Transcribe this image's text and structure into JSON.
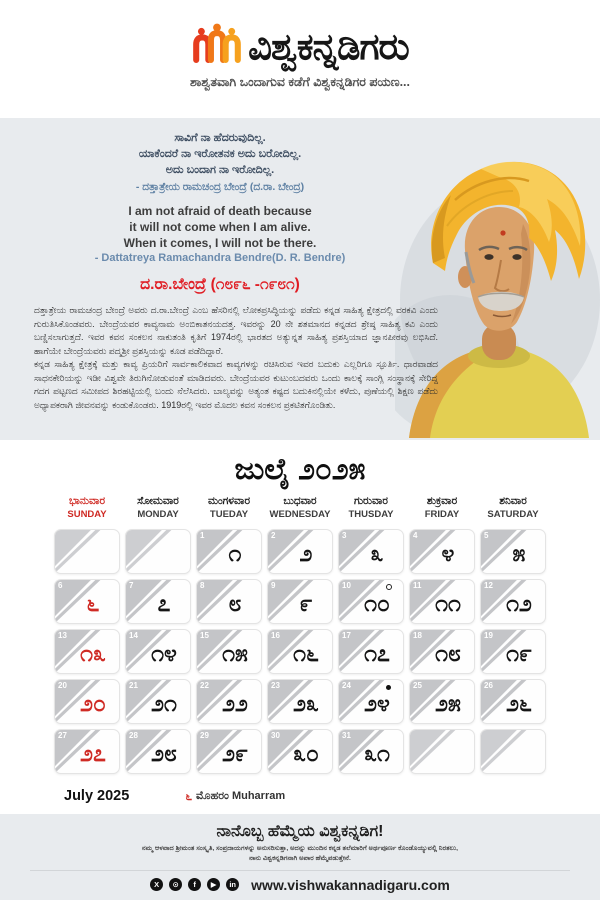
{
  "header": {
    "title": "ವಿಶ್ವಕನ್ನಡಿಗರು",
    "tagline": "ಶಾಶ್ವತವಾಗಿ ಒಂದಾಗುವ ಕಡೆಗೆ ವಿಶ್ವಕನ್ನಡಿಗರ ಪಯಣ...",
    "logo_colors": [
      "#e63c1e",
      "#f07818",
      "#f6a11e"
    ]
  },
  "bio": {
    "kannada_quote_lines": [
      "ಸಾವಿಗೆ ನಾ ಹೆದರುವುದಿಲ್ಲ.",
      "ಯಾಕೆಂದರೆ ನಾ ಇರೋತನಕ ಅದು ಬರೋದಿಲ್ಲ.",
      "ಅದು ಬಂದಾಗ ನಾ ಇರೋದಿಲ್ಲ."
    ],
    "kannada_attribution": "- ದತ್ತಾತ್ರೇಯ ರಾಮಚಂದ್ರ ಬೇಂದ್ರೆ (ದ.ರಾ. ಬೇಂದ್ರ)",
    "english_quote_lines": [
      "I am not afraid of death because",
      "it will not come when I am alive.",
      "When it comes, I will not be there."
    ],
    "english_attribution": "- Dattatreya Ramachandra Bendre(D. R. Bendre)",
    "name_title": "ದ.ರಾ.ಬೇಂದ್ರೆ (೧೮೯೬ -೧೯೮೧)",
    "paragraph1": "ದತ್ತಾತ್ರೇಯ ರಾಮಚಂದ್ರ ಬೇಂದ್ರೆ ಅವರು ದ.ರಾ.ಬೇಂದ್ರೆ ಎಂಬ ಹೆಸರಿನಲ್ಲಿ ಲೋಕಪ್ರಸಿದ್ಧಿಯನ್ನು ಪಡೆದು ಕನ್ನಡ ಸಾಹಿತ್ಯ ಕ್ಷೇತ್ರದಲ್ಲಿ ವರಕವಿ ಎಂದು ಗುರುತಿಸಿಕೊಂಡವರು. ಬೇಂದ್ರೆಯವರ ಕಾವ್ಯನಾಮ ಅಂಬಿಕಾತನಯದತ್ತ. ಇವರನ್ನು 20 ನೇ ಶತಮಾನದ ಕನ್ನಡದ ಶ್ರೇಷ್ಠ ಸಾಹಿತ್ಯ ಕವಿ ಎಂದು ಬಣ್ಣಿಸಲಾಗುತ್ತದೆ. ಇವರ ಕವನ ಸಂಕಲನ ನಾಕುತಂತಿ ಕೃತಿಗೆ 1974ರಲ್ಲಿ ಭಾರತದ ಅತ್ಯುನ್ನತ ಸಾಹಿತ್ಯ ಪ್ರಶಸ್ತಿಯಾದ ಜ್ಞಾನಪೀಠವು ಲಭಿಸಿದೆ. ಹಾಗೆಯೇ ಬೇಂದ್ರೆಯವರು ಪದ್ಮಶ್ರೀ ಪ್ರಶಸ್ತಿಯನ್ನು ಕೂಡ ಪಡೆದಿದ್ದಾರೆ.",
    "paragraph2": "ಕನ್ನಡ ಸಾಹಿತ್ಯ ಕ್ಷೇತ್ರಕ್ಕೆ ಮತ್ತು ಕಾವ್ಯ ಪ್ರಿಯರಿಗೆ ಸಾರ್ವಕಾಲಿಕವಾದ ಕಾವ್ಯಗಳನ್ನು ರಚಿಸಿರುವ ಇವರ ಬದುಕು ಎಲ್ಲರಿಗೂ ಸ್ಫೂರ್ತಿ. ಧಾರವಾಡದ ಸಾಧನಕೇರಿಯನ್ನು ಇಡೀ ವಿಶ್ವವೇ ತಿರುಗಿನೋಡುವಂತೆ ಮಾಡಿದವರು. ಬೇಂದ್ರೆಯವರ ಕುಟುಂಬದವರು ಒಂದು ಕಾಲಕ್ಕೆ ಸಾಂಗ್ಲಿ ಸಂಸ್ಥಾನಕ್ಕೆ ಸೇರಿದ್ದ ಗದಗ ಪಟ್ಟಣದ ಸಮೀಪದ ಶಿರಹಟ್ಟಿಯಲ್ಲಿ ಬಂದು ನೆಲೆಸಿದರು. ಬಾಲ್ಯವನ್ನು ಅತ್ಯಂತ ಕಷ್ಟದ ಬದುಕಿನಲ್ಲಿಯೇ ಕಳೆದು, ಪುಣೆಯಲ್ಲಿ ಶಿಕ್ಷಣ ಪಡೆದು ಅಧ್ಯಾಪಕರಾಗಿ ಜೀವನವನ್ನು ಕಂಡುಕೊಂಡರು. 1919ರಲ್ಲಿ ಇವರ ಮೊದಲ ಕವನ ಸಂಕಲನ ಪ್ರಕಟಿತಗೊಂಡಿತು."
  },
  "calendar": {
    "title": "ಜುಲೈ ೨೦೨೫",
    "weekdays": [
      {
        "kn": "ಭಾನುವಾರ",
        "en": "SUNDAY",
        "holiday": true
      },
      {
        "kn": "ಸೋಮವಾರ",
        "en": "MONDAY",
        "holiday": false
      },
      {
        "kn": "ಮಂಗಳವಾರ",
        "en": "TUEDAY",
        "holiday": false
      },
      {
        "kn": "ಬುಧವಾರ",
        "en": "WEDNESDAY",
        "holiday": false
      },
      {
        "kn": "ಗುರುವಾರ",
        "en": "THUSDAY",
        "holiday": false
      },
      {
        "kn": "ಶುಕ್ರವಾರ",
        "en": "FRIDAY",
        "holiday": false
      },
      {
        "kn": "ಶನಿವಾರ",
        "en": "SATURDAY",
        "holiday": false
      }
    ],
    "cells": [
      {
        "en": "",
        "kn": ""
      },
      {
        "en": "",
        "kn": ""
      },
      {
        "en": "1",
        "kn": "೧"
      },
      {
        "en": "2",
        "kn": "೨"
      },
      {
        "en": "3",
        "kn": "೩"
      },
      {
        "en": "4",
        "kn": "೪"
      },
      {
        "en": "5",
        "kn": "೫"
      },
      {
        "en": "6",
        "kn": "೬",
        "holiday": true
      },
      {
        "en": "7",
        "kn": "೭"
      },
      {
        "en": "8",
        "kn": "೮"
      },
      {
        "en": "9",
        "kn": "೯"
      },
      {
        "en": "10",
        "kn": "೧೦",
        "marker": "full-moon"
      },
      {
        "en": "11",
        "kn": "೧೧"
      },
      {
        "en": "12",
        "kn": "೧೨"
      },
      {
        "en": "13",
        "kn": "೧೩",
        "holiday": true
      },
      {
        "en": "14",
        "kn": "೧೪"
      },
      {
        "en": "15",
        "kn": "೧೫"
      },
      {
        "en": "16",
        "kn": "೧೬"
      },
      {
        "en": "17",
        "kn": "೧೭"
      },
      {
        "en": "18",
        "kn": "೧೮"
      },
      {
        "en": "19",
        "kn": "೧೯"
      },
      {
        "en": "20",
        "kn": "೨೦",
        "holiday": true
      },
      {
        "en": "21",
        "kn": "೨೧"
      },
      {
        "en": "22",
        "kn": "೨೨"
      },
      {
        "en": "23",
        "kn": "೨೩"
      },
      {
        "en": "24",
        "kn": "೨೪",
        "marker": "new-moon"
      },
      {
        "en": "25",
        "kn": "೨೫"
      },
      {
        "en": "26",
        "kn": "೨೬"
      },
      {
        "en": "27",
        "kn": "೨೭",
        "holiday": true
      },
      {
        "en": "28",
        "kn": "೨೮"
      },
      {
        "en": "29",
        "kn": "೨೯"
      },
      {
        "en": "30",
        "kn": "೩೦"
      },
      {
        "en": "31",
        "kn": "೩೧"
      },
      {
        "en": "",
        "kn": ""
      },
      {
        "en": "",
        "kn": ""
      }
    ],
    "month_label": "July 2025",
    "legend_day": "೬",
    "legend_text": "ಮೊಹರಂ Muharram"
  },
  "footer": {
    "heading": "ನಾನೊಬ್ಬ ಹೆಮ್ಮೆಯ ವಿಶ್ವಕನ್ನಡಿಗ!",
    "line1": "ನಮ್ಮ ಆಳವಾದ ಶ್ರೀಮಂತ ಸಂಸ್ಕೃತಿ, ಸಂಪ್ರದಾಯಗಳನ್ನು ಅನುಸರಿಸುತ್ತಾ, ಅದನ್ನು ಮುಂದಿನ ಕನ್ನಡ ತಲೆಮಾರಿಗೆ ಅರ್ಥಪೂರ್ಣ ಕೊಂಡೊಯ್ಯುವಲ್ಲಿ ನಿರತಲು,",
    "line2": "ನಾನು ವಿಶ್ವಕನ್ನಡಿಗನಾಗಿ ಅಪಾರ ಹೆಮ್ಮೆಪಡುತ್ತೇನೆ.",
    "website": "www.vishwakannadigaru.com",
    "social": [
      {
        "name": "x-icon",
        "glyph": "X"
      },
      {
        "name": "instagram-icon",
        "glyph": "⊙"
      },
      {
        "name": "facebook-icon",
        "glyph": "f"
      },
      {
        "name": "youtube-icon",
        "glyph": "▶"
      },
      {
        "name": "linkedin-icon",
        "glyph": "in"
      }
    ]
  }
}
